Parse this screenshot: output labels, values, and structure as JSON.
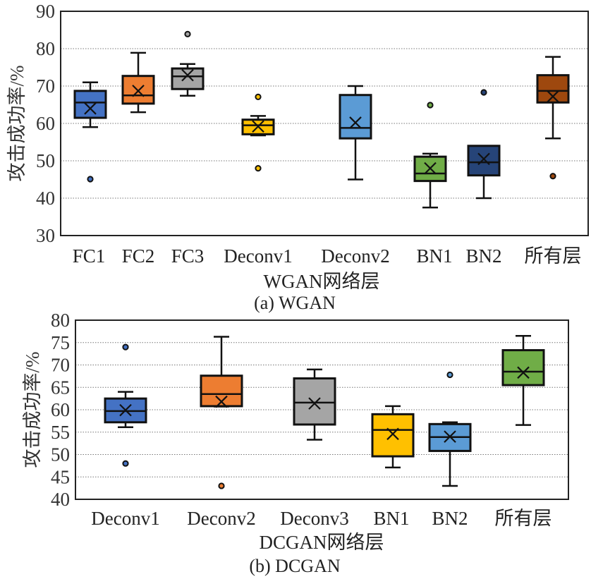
{
  "chart_data": [
    {
      "id": "wgan",
      "type": "box",
      "caption": "(a) WGAN",
      "xlabel": "WGAN网络层",
      "ylabel": "攻击成功率/%",
      "ylim": [
        30,
        90
      ],
      "yticks": [
        30,
        40,
        50,
        60,
        70,
        80,
        90
      ],
      "grid": "horizontal-dotted",
      "categories": [
        "FC1",
        "FC2",
        "FC3",
        "Deconv1",
        "Deconv2",
        "BN1",
        "BN2",
        "所有层"
      ],
      "boxes": [
        {
          "name": "FC1",
          "color": "#4472C4",
          "whisker_low": 59,
          "q1": 61.5,
          "median": 65.6,
          "q3": 68.7,
          "whisker_high": 71,
          "mean": 64,
          "outliers": [
            45.1
          ]
        },
        {
          "name": "FC2",
          "color": "#ED7D31",
          "whisker_low": 63,
          "q1": 65.3,
          "median": 67.5,
          "q3": 72.7,
          "whisker_high": 78.9,
          "mean": 68.7,
          "outliers": []
        },
        {
          "name": "FC3",
          "color": "#A5A5A5",
          "whisker_low": 67.4,
          "q1": 69.2,
          "median": 72.6,
          "q3": 74.7,
          "whisker_high": 75.9,
          "mean": 72.9,
          "outliers": [
            83.9
          ]
        },
        {
          "name": "Deconv1",
          "color": "#FFC000",
          "whisker_low": 56.8,
          "q1": 57.1,
          "median": 59.5,
          "q3": 61,
          "whisker_high": 62,
          "mean": 59.2,
          "outliers": [
            67.1,
            48
          ]
        },
        {
          "name": "Deconv2",
          "color": "#5B9BD5",
          "whisker_low": 45,
          "q1": 56,
          "median": 58.8,
          "q3": 67.6,
          "whisker_high": 70,
          "mean": 60.2,
          "outliers": []
        },
        {
          "name": "BN1",
          "color": "#70AD47",
          "whisker_low": 37.5,
          "q1": 44.6,
          "median": 46.6,
          "q3": 51.1,
          "whisker_high": 51.9,
          "mean": 48,
          "outliers": [
            64.9
          ]
        },
        {
          "name": "BN2",
          "color": "#264478",
          "whisker_low": 40,
          "q1": 46.1,
          "median": 49.6,
          "q3": 54,
          "whisker_high": 54,
          "mean": 50.5,
          "outliers": [
            68.3
          ]
        },
        {
          "name": "所有层",
          "color": "#9E480E",
          "whisker_low": 56,
          "q1": 65.6,
          "median": 68.7,
          "q3": 72.9,
          "whisker_high": 77.8,
          "mean": 67.2,
          "outliers": [
            45.9
          ]
        }
      ]
    },
    {
      "id": "dcgan",
      "type": "box",
      "caption": "(b) DCGAN",
      "xlabel": "DCGAN网络层",
      "ylabel": "攻击成功率/%",
      "ylim": [
        40,
        80
      ],
      "yticks": [
        40,
        45,
        50,
        55,
        60,
        65,
        70,
        75,
        80
      ],
      "grid": "horizontal-dotted",
      "categories": [
        "Deconv1",
        "Deconv2",
        "Deconv3",
        "BN1",
        "BN2",
        "所有层"
      ],
      "boxes": [
        {
          "name": "Deconv1",
          "color": "#4472C4",
          "whisker_low": 56.1,
          "q1": 57.2,
          "median": 59.7,
          "q3": 62.5,
          "whisker_high": 64,
          "mean": 59.9,
          "outliers": [
            74,
            48
          ]
        },
        {
          "name": "Deconv2",
          "color": "#ED7D31",
          "whisker_low": 60.7,
          "q1": 60.8,
          "median": 63.5,
          "q3": 67.6,
          "whisker_high": 76.3,
          "mean": 61.8,
          "outliers": [
            43
          ]
        },
        {
          "name": "Deconv3",
          "color": "#A5A5A5",
          "whisker_low": 53.3,
          "q1": 56.7,
          "median": 61.6,
          "q3": 67,
          "whisker_high": 69,
          "mean": 61.4,
          "outliers": []
        },
        {
          "name": "BN1",
          "color": "#FFC000",
          "whisker_low": 47.1,
          "q1": 49.6,
          "median": 55.5,
          "q3": 59,
          "whisker_high": 60.8,
          "mean": 54.6,
          "outliers": []
        },
        {
          "name": "BN2",
          "color": "#5B9BD5",
          "whisker_low": 43,
          "q1": 50.8,
          "median": 53.9,
          "q3": 56.8,
          "whisker_high": 57.2,
          "mean": 54,
          "outliers": [
            67.8
          ]
        },
        {
          "name": "所有层",
          "color": "#70AD47",
          "whisker_low": 56.6,
          "q1": 65.5,
          "median": 68.5,
          "q3": 73.3,
          "whisker_high": 76.5,
          "mean": 68.3,
          "outliers": []
        }
      ]
    }
  ]
}
